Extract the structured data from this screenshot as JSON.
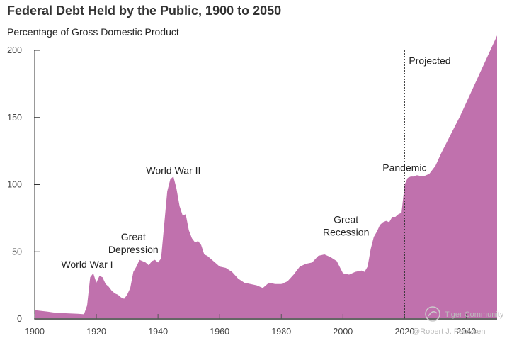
{
  "chart_data": {
    "type": "area",
    "title": "Federal Debt Held by the Public, 1900 to 2050",
    "subtitle": "Percentage of Gross Domestic Product",
    "xlabel": "",
    "ylabel": "Percentage of Gross Domestic Product",
    "xlim": [
      1900,
      2050
    ],
    "ylim": [
      0,
      200
    ],
    "yticks": [
      0,
      50,
      100,
      150,
      200
    ],
    "xticks": [
      1900,
      1920,
      1940,
      1960,
      1980,
      2000,
      2020,
      2040
    ],
    "grid": false,
    "color": "#c071ad",
    "series": [
      {
        "name": "Federal debt held by the public (% of GDP)",
        "x": [
          1900,
          1902,
          1904,
          1906,
          1908,
          1910,
          1912,
          1914,
          1916,
          1917,
          1918,
          1919,
          1920,
          1921,
          1922,
          1923,
          1924,
          1925,
          1926,
          1927,
          1928,
          1929,
          1930,
          1931,
          1932,
          1933,
          1934,
          1935,
          1936,
          1937,
          1938,
          1939,
          1940,
          1941,
          1942,
          1943,
          1944,
          1945,
          1946,
          1947,
          1948,
          1949,
          1950,
          1951,
          1952,
          1953,
          1954,
          1955,
          1956,
          1957,
          1958,
          1959,
          1960,
          1962,
          1964,
          1966,
          1968,
          1970,
          1972,
          1974,
          1976,
          1978,
          1980,
          1982,
          1984,
          1986,
          1988,
          1990,
          1992,
          1994,
          1996,
          1998,
          2000,
          2002,
          2004,
          2006,
          2007,
          2008,
          2009,
          2010,
          2011,
          2012,
          2013,
          2014,
          2015,
          2016,
          2017,
          2018,
          2019,
          2020,
          2021,
          2022,
          2023,
          2024,
          2026,
          2028,
          2030,
          2032,
          2034,
          2036,
          2038,
          2040,
          2042,
          2044,
          2046,
          2048,
          2050
        ],
        "values": [
          6.5,
          6,
          5.5,
          4.8,
          4.5,
          4.2,
          4.0,
          3.8,
          3.5,
          10,
          31,
          34,
          27,
          32,
          31,
          26,
          24,
          21,
          19,
          18,
          16,
          15,
          18,
          23,
          35,
          39,
          44,
          43,
          42,
          40,
          43,
          44,
          42,
          45,
          70,
          95,
          104,
          106,
          97,
          84,
          77,
          78,
          66,
          60,
          57,
          58,
          55,
          48,
          47,
          45,
          43,
          41,
          39,
          38,
          35,
          30,
          27,
          26,
          25,
          23,
          27,
          26,
          26,
          28,
          33,
          39,
          41,
          42,
          47,
          48,
          46,
          43,
          34,
          33,
          35,
          36,
          35,
          39,
          52,
          61,
          65,
          70,
          72,
          73,
          72,
          76,
          76,
          78,
          79,
          100,
          105,
          106,
          106,
          107,
          106,
          108,
          114,
          124,
          133,
          142,
          151,
          161,
          171,
          181,
          191,
          201,
          211
        ]
      }
    ],
    "reference_line": {
      "x": 2020,
      "label": "Projected"
    },
    "annotations": [
      {
        "lines": [
          "World War I"
        ],
        "x": 1917,
        "y": 38
      },
      {
        "lines": [
          "Great",
          "Depression"
        ],
        "x": 1932,
        "y": 49
      },
      {
        "lines": [
          "World War II"
        ],
        "x": 1945,
        "y": 108
      },
      {
        "lines": [
          "Great",
          "Recession"
        ],
        "x": 2001,
        "y": 62
      },
      {
        "lines": [
          "Pandemic"
        ],
        "x": 2020,
        "y": 110
      }
    ],
    "watermark": [
      "Tiger Community",
      "@Robert J. Fenissen"
    ]
  }
}
